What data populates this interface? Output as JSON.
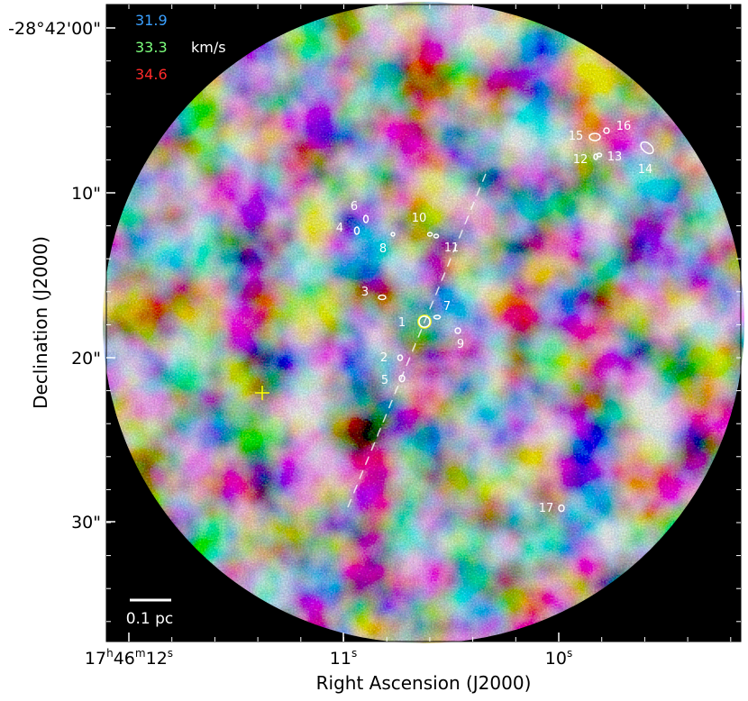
{
  "figure": {
    "legend": {
      "velocities": [
        "31.9",
        "33.3",
        "34.6"
      ],
      "unit": "km/s"
    },
    "scale_bar": "0.1 pc",
    "x_axis": {
      "title": "Right Ascension (J2000)",
      "ticks": [
        [
          "17",
          "h",
          "46",
          "m",
          "12",
          "s"
        ],
        [
          "11",
          "s"
        ],
        [
          "10",
          "s"
        ]
      ]
    },
    "y_axis": {
      "title": "Declination (J2000)",
      "ticks": [
        "-28°42'00\"",
        "10\"",
        "20\"",
        "30\""
      ]
    },
    "sources": [
      "1",
      "2",
      "3",
      "4",
      "5",
      "6",
      "7",
      "8",
      "9",
      "10",
      "11",
      "12",
      "13",
      "14",
      "15",
      "16",
      "17"
    ]
  }
}
